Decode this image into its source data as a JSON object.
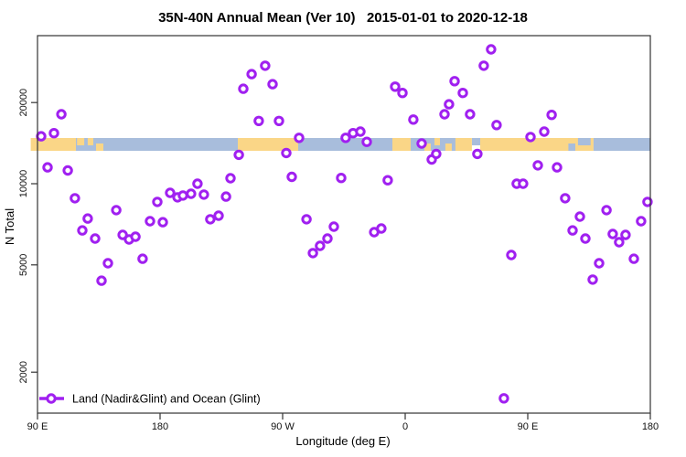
{
  "chart_data": {
    "type": "scatter",
    "title": "35N-40N Annual Mean (Ver 10)   2015-01-01 to 2020-12-18",
    "xlabel": "Longitude (deg E)",
    "ylabel": "N Total",
    "x_axis": {
      "note": "longitude axis starts at 90E and wraps eastward 450 degrees",
      "range_deg_offset": [
        0,
        450
      ],
      "ticks": [
        {
          "offset": 0,
          "label": "90 E"
        },
        {
          "offset": 90,
          "label": "180"
        },
        {
          "offset": 180,
          "label": "90 W"
        },
        {
          "offset": 270,
          "label": "0"
        },
        {
          "offset": 360,
          "label": "90 E"
        },
        {
          "offset": 450,
          "label": "180"
        }
      ]
    },
    "y_axis": {
      "scale": "log10",
      "range": [
        1410,
        33800
      ],
      "ticks": [
        {
          "value": 2000,
          "label": "2000"
        },
        {
          "value": 5000,
          "label": "5000"
        },
        {
          "value": 10000,
          "label": "10000"
        },
        {
          "value": 20000,
          "label": "20000"
        }
      ],
      "grid": false
    },
    "legend": {
      "label": "Land (Nadir&Glint) and Ocean (Glint)",
      "position": "bottom-left",
      "marker": "open-circle-on-line"
    },
    "colors": {
      "point": "#A020F0",
      "point_fill": "#FFFFFF",
      "land": "#FAD687",
      "ocean": "#A8BDDC",
      "axis": "#333333"
    },
    "map_strip": {
      "description": "land/ocean band of the 35N-40N latitude zone drawn across the plot",
      "center_value": 14000,
      "segments": [
        {
          "t": "land",
          "a": -5,
          "b": 28.2,
          "v": "f"
        },
        {
          "t": "ocean",
          "a": 28.2,
          "b": 147.1,
          "v": "f"
        },
        {
          "t": "land",
          "a": 29.0,
          "b": 34.3,
          "v": "t"
        },
        {
          "t": "land",
          "a": 36.9,
          "b": 41.0,
          "v": "t"
        },
        {
          "t": "land",
          "a": 43.0,
          "b": 48.4,
          "v": "b"
        },
        {
          "t": "land",
          "a": 147.1,
          "b": 191.4,
          "v": "f"
        },
        {
          "t": "ocean",
          "a": 191.4,
          "b": 260.6,
          "v": "f"
        },
        {
          "t": "land",
          "a": 260.6,
          "b": 274.0,
          "v": "f"
        },
        {
          "t": "ocean",
          "a": 274.0,
          "b": 306.9,
          "v": "f"
        },
        {
          "t": "land",
          "a": 284.1,
          "b": 288.8,
          "v": "b"
        },
        {
          "t": "land",
          "a": 291.5,
          "b": 295.5,
          "v": "t"
        },
        {
          "t": "land",
          "a": 299.5,
          "b": 304.2,
          "v": "b"
        },
        {
          "t": "land",
          "a": 306.9,
          "b": 319.0,
          "v": "f"
        },
        {
          "t": "ocean",
          "a": 319.0,
          "b": 325.1,
          "v": "t"
        },
        {
          "t": "land",
          "a": 325.1,
          "b": 408.3,
          "v": "f"
        },
        {
          "t": "ocean",
          "a": 389.8,
          "b": 394.9,
          "v": "b"
        },
        {
          "t": "ocean",
          "a": 396.9,
          "b": 406.2,
          "v": "t"
        },
        {
          "t": "ocean",
          "a": 408.3,
          "b": 450.0,
          "v": "f"
        }
      ]
    },
    "points": [
      [
        2.7,
        15000
      ],
      [
        12.1,
        15400
      ],
      [
        17.5,
        18100
      ],
      [
        7.4,
        11500
      ],
      [
        22.2,
        11200
      ],
      [
        27.5,
        8830
      ],
      [
        36.9,
        7430
      ],
      [
        32.9,
        6710
      ],
      [
        42.3,
        6260
      ],
      [
        47.0,
        4370
      ],
      [
        51.7,
        5070
      ],
      [
        57.8,
        7980
      ],
      [
        62.5,
        6460
      ],
      [
        67.2,
        6210
      ],
      [
        71.9,
        6360
      ],
      [
        77.2,
        5270
      ],
      [
        82.6,
        7260
      ],
      [
        88.0,
        8560
      ],
      [
        92.0,
        7200
      ],
      [
        97.4,
        9250
      ],
      [
        102.8,
        8900
      ],
      [
        106.8,
        9040
      ],
      [
        112.8,
        9180
      ],
      [
        117.5,
        10000
      ],
      [
        122.2,
        9110
      ],
      [
        126.9,
        7380
      ],
      [
        133.0,
        7610
      ],
      [
        138.4,
        8960
      ],
      [
        141.7,
        10480
      ],
      [
        147.8,
        12800
      ],
      [
        151.1,
        22500
      ],
      [
        157.2,
        25500
      ],
      [
        162.5,
        17100
      ],
      [
        167.2,
        27400
      ],
      [
        172.6,
        23400
      ],
      [
        177.3,
        17100
      ],
      [
        182.7,
        13000
      ],
      [
        186.7,
        10600
      ],
      [
        192.1,
        14800
      ],
      [
        197.5,
        7380
      ],
      [
        202.2,
        5530
      ],
      [
        207.5,
        5880
      ],
      [
        212.9,
        6260
      ],
      [
        217.6,
        6930
      ],
      [
        223.0,
        10500
      ],
      [
        226.3,
        14800
      ],
      [
        231.7,
        15400
      ],
      [
        237.1,
        15600
      ],
      [
        241.8,
        14300
      ],
      [
        247.2,
        6610
      ],
      [
        252.5,
        6820
      ],
      [
        257.2,
        10300
      ],
      [
        262.6,
        22900
      ],
      [
        268.0,
        21700
      ],
      [
        276.0,
        17300
      ],
      [
        282.1,
        14100
      ],
      [
        289.5,
        12300
      ],
      [
        292.8,
        12900
      ],
      [
        298.9,
        18100
      ],
      [
        302.2,
        19700
      ],
      [
        306.3,
        24000
      ],
      [
        312.3,
        21700
      ],
      [
        317.6,
        18100
      ],
      [
        323.0,
        12900
      ],
      [
        327.7,
        27400
      ],
      [
        333.1,
        31500
      ],
      [
        337.1,
        16500
      ],
      [
        342.5,
        1600
      ],
      [
        347.9,
        5440
      ],
      [
        351.9,
        10000
      ],
      [
        356.6,
        10000
      ],
      [
        362.0,
        14900
      ],
      [
        367.4,
        11700
      ],
      [
        372.1,
        15600
      ],
      [
        377.5,
        18000
      ],
      [
        381.5,
        11500
      ],
      [
        387.5,
        8830
      ],
      [
        392.9,
        6710
      ],
      [
        398.3,
        7550
      ],
      [
        402.3,
        6260
      ],
      [
        407.7,
        4410
      ],
      [
        412.4,
        5070
      ],
      [
        417.8,
        7980
      ],
      [
        422.4,
        6510
      ],
      [
        427.1,
        6070
      ],
      [
        431.8,
        6460
      ],
      [
        437.9,
        5270
      ],
      [
        443.2,
        7260
      ],
      [
        447.9,
        8560
      ]
    ]
  }
}
